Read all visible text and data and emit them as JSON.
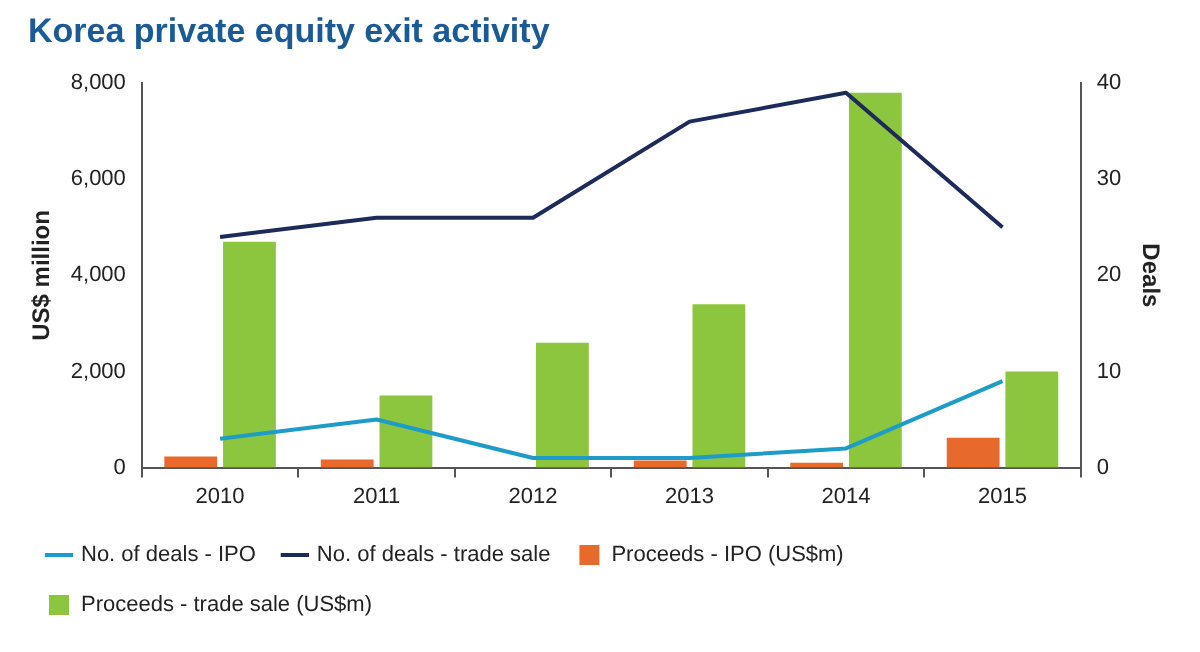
{
  "chart_data": {
    "type": "bar",
    "title": "Korea private equity exit activity",
    "categories": [
      "2010",
      "2011",
      "2012",
      "2013",
      "2014",
      "2015"
    ],
    "ylabel": "US$ million",
    "y2label": "Deals",
    "ylim": [
      0,
      8000
    ],
    "yticks": [
      {
        "value": 0,
        "label": "0"
      },
      {
        "value": 2000,
        "label": "2,000"
      },
      {
        "value": 4000,
        "label": "4,000"
      },
      {
        "value": 6000,
        "label": "6,000"
      },
      {
        "value": 8000,
        "label": "8,000"
      }
    ],
    "y2lim": [
      0,
      40
    ],
    "y2ticks": [
      0,
      10,
      20,
      30,
      40
    ],
    "series": [
      {
        "name": "No. of deals - IPO",
        "type": "line",
        "axis": "y2",
        "color": "#1e9cc8",
        "values": [
          3,
          5,
          1,
          1,
          2,
          9
        ]
      },
      {
        "name": "No. of deals - trade sale",
        "type": "line",
        "axis": "y2",
        "color": "#1c2b5a",
        "values": [
          24,
          26,
          26,
          36,
          39,
          25
        ]
      },
      {
        "name": "Proceeds - IPO (US$m)",
        "color": "#e8692c",
        "values": [
          230,
          170,
          0,
          150,
          100,
          620
        ]
      },
      {
        "name": "Proceeds - trade sale (US$m)",
        "color": "#8cc63f",
        "values": [
          4700,
          1500,
          2600,
          3400,
          7800,
          2000
        ]
      }
    ],
    "grid": false,
    "legend": "bottom",
    "marker": "none",
    "line_style": "solid"
  }
}
